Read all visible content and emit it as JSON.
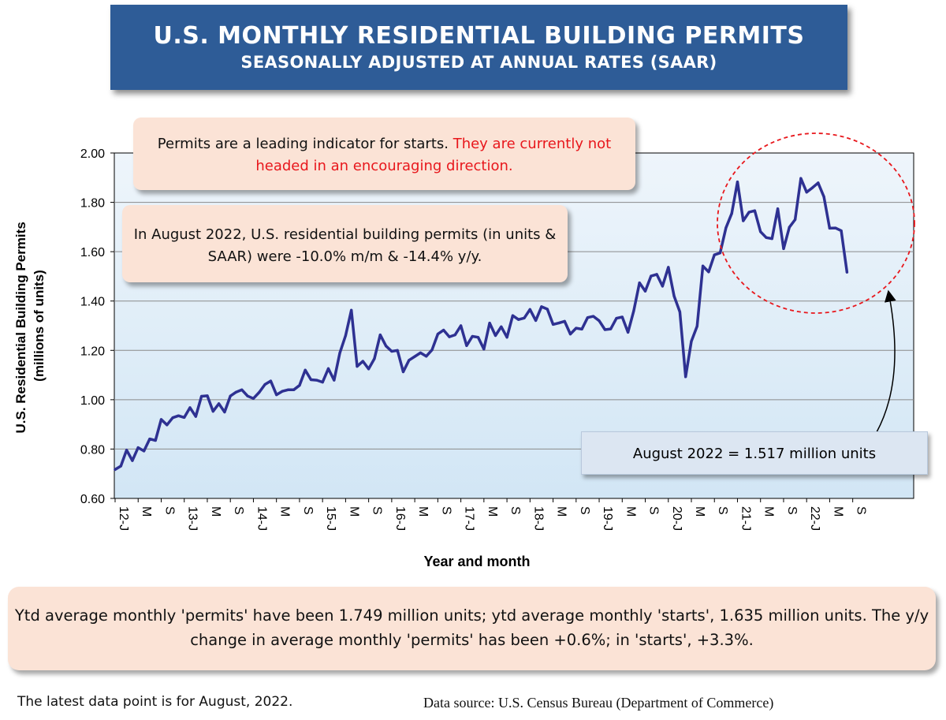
{
  "header": {
    "title": "U.S. MONTHLY RESIDENTIAL BUILDING PERMITS",
    "subtitle": "SEASONALLY ADJUSTED AT ANNUAL RATES (SAAR)"
  },
  "annotations": {
    "callout1_black": "Permits are a leading indicator for starts. ",
    "callout1_red": "They are currently not headed in an encouraging direction.",
    "callout2": "In August 2022, U.S. residential building permits (in units & SAAR) were -10.0% m/m & -14.4% y/y.",
    "latest": "August 2022 = 1.517 million units",
    "summary": "Ytd average monthly 'permits' have been 1.749 million units; ytd average monthly 'starts', 1.635 million units. The y/y change in average monthly 'permits' has been +0.6%; in 'starts', +3.3%."
  },
  "footer": {
    "note": "The latest data point is for August, 2022.",
    "source": "Data source: U.S. Census Bureau (Department of Commerce)"
  },
  "colors": {
    "line": "#2e3192",
    "plot_background_top": "#eef5fb",
    "plot_background_bottom": "#d2e6f5",
    "circle": "#e8171c"
  },
  "chart_data": {
    "type": "line",
    "xlabel": "Year and month",
    "ylabel": "U.S. Residential Building Permits",
    "ylabel_units": "(millions of units)",
    "ylim": [
      0.6,
      2.0
    ],
    "yticks": [
      "2.00",
      "1.80",
      "1.60",
      "1.40",
      "1.20",
      "1.00",
      "0.80",
      "0.60"
    ],
    "grid": true,
    "xtick_labels": [
      "12-J",
      "M",
      "S",
      "13-J",
      "M",
      "S",
      "14-J",
      "M",
      "S",
      "15-J",
      "M",
      "S",
      "16-J",
      "M",
      "S",
      "17-J",
      "M",
      "S",
      "18-J",
      "M",
      "S",
      "19-J",
      "M",
      "S",
      "20-J",
      "M",
      "S",
      "21-J",
      "M",
      "S",
      "22-J",
      "M",
      "S"
    ],
    "start": "2012-01",
    "end": "2022-08",
    "series": [
      {
        "values": [
          0.717,
          0.731,
          0.796,
          0.753,
          0.806,
          0.792,
          0.841,
          0.835,
          0.92,
          0.898,
          0.927,
          0.935,
          0.928,
          0.968,
          0.932,
          1.014,
          1.016,
          0.953,
          0.984,
          0.95,
          1.015,
          1.031,
          1.04,
          1.015,
          1.005,
          1.03,
          1.062,
          1.076,
          1.02,
          1.034,
          1.04,
          1.04,
          1.058,
          1.12,
          1.081,
          1.079,
          1.071,
          1.126,
          1.079,
          1.19,
          1.26,
          1.363,
          1.135,
          1.156,
          1.125,
          1.166,
          1.263,
          1.218,
          1.196,
          1.2,
          1.113,
          1.16,
          1.175,
          1.19,
          1.176,
          1.202,
          1.266,
          1.282,
          1.255,
          1.263,
          1.3,
          1.219,
          1.257,
          1.253,
          1.205,
          1.311,
          1.26,
          1.296,
          1.253,
          1.341,
          1.325,
          1.331,
          1.366,
          1.321,
          1.377,
          1.367,
          1.305,
          1.311,
          1.318,
          1.266,
          1.29,
          1.286,
          1.333,
          1.338,
          1.32,
          1.284,
          1.287,
          1.33,
          1.335,
          1.273,
          1.36,
          1.474,
          1.44,
          1.501,
          1.508,
          1.46,
          1.537,
          1.42,
          1.356,
          1.093,
          1.237,
          1.298,
          1.542,
          1.518,
          1.587,
          1.595,
          1.697,
          1.755,
          1.883,
          1.725,
          1.76,
          1.766,
          1.681,
          1.657,
          1.653,
          1.774,
          1.612,
          1.699,
          1.73,
          1.897,
          1.841,
          1.859,
          1.879,
          1.823,
          1.695,
          1.696,
          1.685,
          1.517
        ]
      }
    ]
  }
}
